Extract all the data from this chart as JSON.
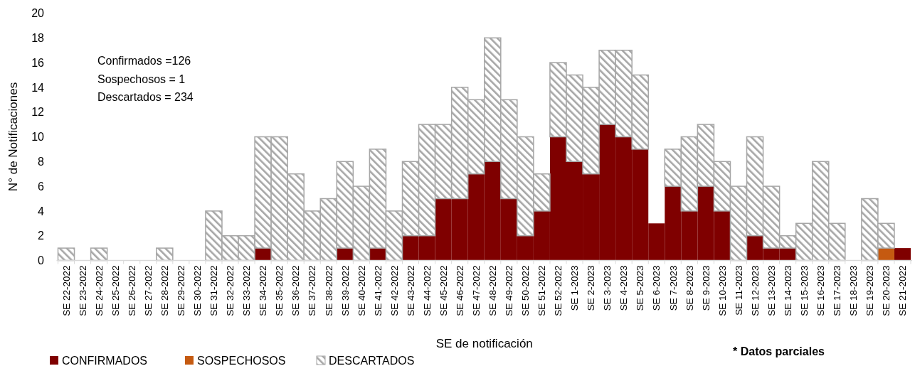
{
  "chart_data": {
    "type": "bar",
    "stacked": true,
    "xlabel": "SE de notificación",
    "ylabel": "N° de Notificaciones",
    "categories": [
      "SE 22-2022",
      "SE 23-2022",
      "SE 24-2022",
      "SE 25-2022",
      "SE 26-2022",
      "SE 27-2022",
      "SE 28-2022",
      "SE 29-2022",
      "SE 30-2022",
      "SE 31-2022",
      "SE 32-2022",
      "SE 33-2022",
      "SE 34-2022",
      "SE 35-2022",
      "SE 36-2022",
      "SE 37-2022",
      "SE 38-2022",
      "SE 39-2022",
      "SE 40-2022",
      "SE 41-2022",
      "SE 42-2022",
      "SE 43-2022",
      "SE 44-2022",
      "SE 45-2022",
      "SE 46-2022",
      "SE 47-2022",
      "SE 48-2022",
      "SE 49-2022",
      "SE 50-2022",
      "SE 51-2022",
      "SE 52-2022",
      "SE 1-2023",
      "SE 2-2023",
      "SE 3-2023",
      "SE 4-2023",
      "SE 5-2023",
      "SE 6-2023",
      "SE 7-2023",
      "SE 8-2023",
      "SE 9-2023",
      "SE 10-2023",
      "SE 11-2023",
      "SE 12-2023",
      "SE 13-2023",
      "SE 14-2023",
      "SE 15-2023",
      "SE 16-2023",
      "SE 17-2023",
      "SE 18-2023",
      "SE 19-2023",
      "SE 20-2023",
      "SE 21-2022"
    ],
    "series": [
      {
        "name": "CONFIRMADOS",
        "color": "#7f0000",
        "values": [
          0,
          0,
          0,
          0,
          0,
          0,
          0,
          0,
          0,
          0,
          0,
          0,
          1,
          0,
          0,
          0,
          0,
          1,
          0,
          1,
          0,
          2,
          2,
          5,
          5,
          7,
          8,
          5,
          2,
          4,
          10,
          8,
          7,
          11,
          10,
          9,
          3,
          6,
          4,
          6,
          4,
          0,
          2,
          1,
          1,
          0,
          0,
          0,
          0,
          0,
          0,
          1
        ]
      },
      {
        "name": "SOSPECHOSOS",
        "color": "#c55a11",
        "values": [
          0,
          0,
          0,
          0,
          0,
          0,
          0,
          0,
          0,
          0,
          0,
          0,
          0,
          0,
          0,
          0,
          0,
          0,
          0,
          0,
          0,
          0,
          0,
          0,
          0,
          0,
          0,
          0,
          0,
          0,
          0,
          0,
          0,
          0,
          0,
          0,
          0,
          0,
          0,
          0,
          0,
          0,
          0,
          0,
          0,
          0,
          0,
          0,
          0,
          0,
          1,
          0
        ]
      },
      {
        "name": "DESCARTADOS",
        "color": "#a6a6a6",
        "values": [
          1,
          0,
          1,
          0,
          0,
          0,
          1,
          0,
          0,
          4,
          2,
          2,
          9,
          10,
          7,
          4,
          5,
          7,
          6,
          8,
          4,
          6,
          9,
          6,
          9,
          6,
          10,
          8,
          8,
          3,
          6,
          7,
          7,
          6,
          7,
          6,
          0,
          3,
          6,
          5,
          4,
          6,
          8,
          5,
          1,
          3,
          8,
          3,
          0,
          5,
          2,
          0
        ]
      }
    ],
    "ylim": [
      0,
      20
    ],
    "yticks": [
      0,
      2,
      4,
      6,
      8,
      10,
      12,
      14,
      16,
      18,
      20
    ],
    "legend": "bottom left",
    "annotations": [
      "Confirmados =126",
      "Sospechosos = 1",
      "Descartados = 234",
      "* Datos parciales"
    ]
  }
}
